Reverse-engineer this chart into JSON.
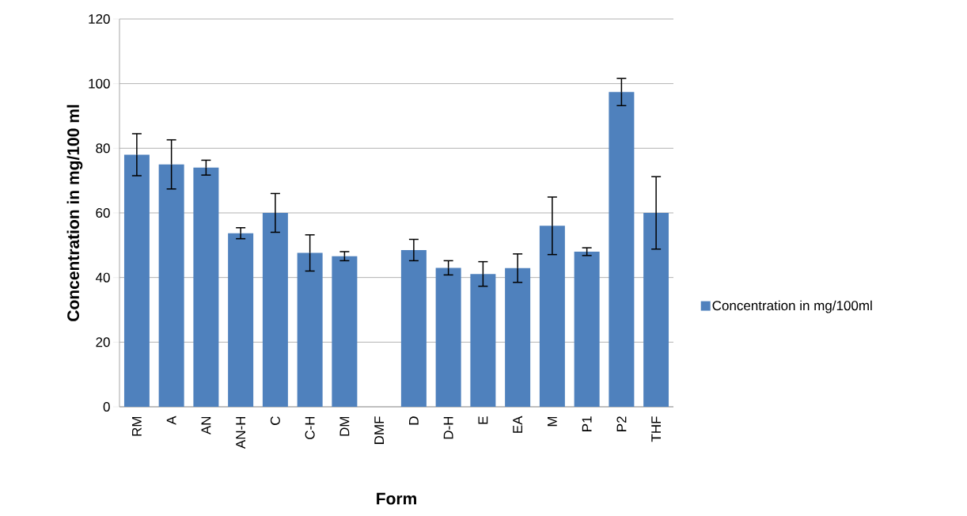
{
  "chart_data": {
    "type": "bar",
    "xlabel": "Form",
    "ylabel": "Concentration in mg/100 ml",
    "categories": [
      "RM",
      "A",
      "AN",
      "AN-H",
      "C",
      "C-H",
      "DM",
      "DMF",
      "D",
      "D-H",
      "E",
      "EA",
      "M",
      "P1",
      "P2",
      "THF"
    ],
    "series": [
      {
        "name": "Concentration in mg/100ml",
        "color": "#4f81bd",
        "values": [
          78,
          75,
          74,
          53.7,
          60,
          47.6,
          46.6,
          null,
          48.5,
          43,
          41.1,
          42.9,
          56,
          48,
          97.4,
          60
        ],
        "errors": [
          6.5,
          7.6,
          2.3,
          1.7,
          6,
          5.6,
          1.4,
          null,
          3.3,
          2.2,
          3.8,
          4.4,
          8.9,
          1.2,
          4.2,
          11.2
        ]
      }
    ],
    "ylim": [
      0,
      120
    ],
    "yticks": [
      0,
      20,
      40,
      60,
      80,
      100,
      120
    ],
    "grid": "y",
    "legend": "right"
  }
}
